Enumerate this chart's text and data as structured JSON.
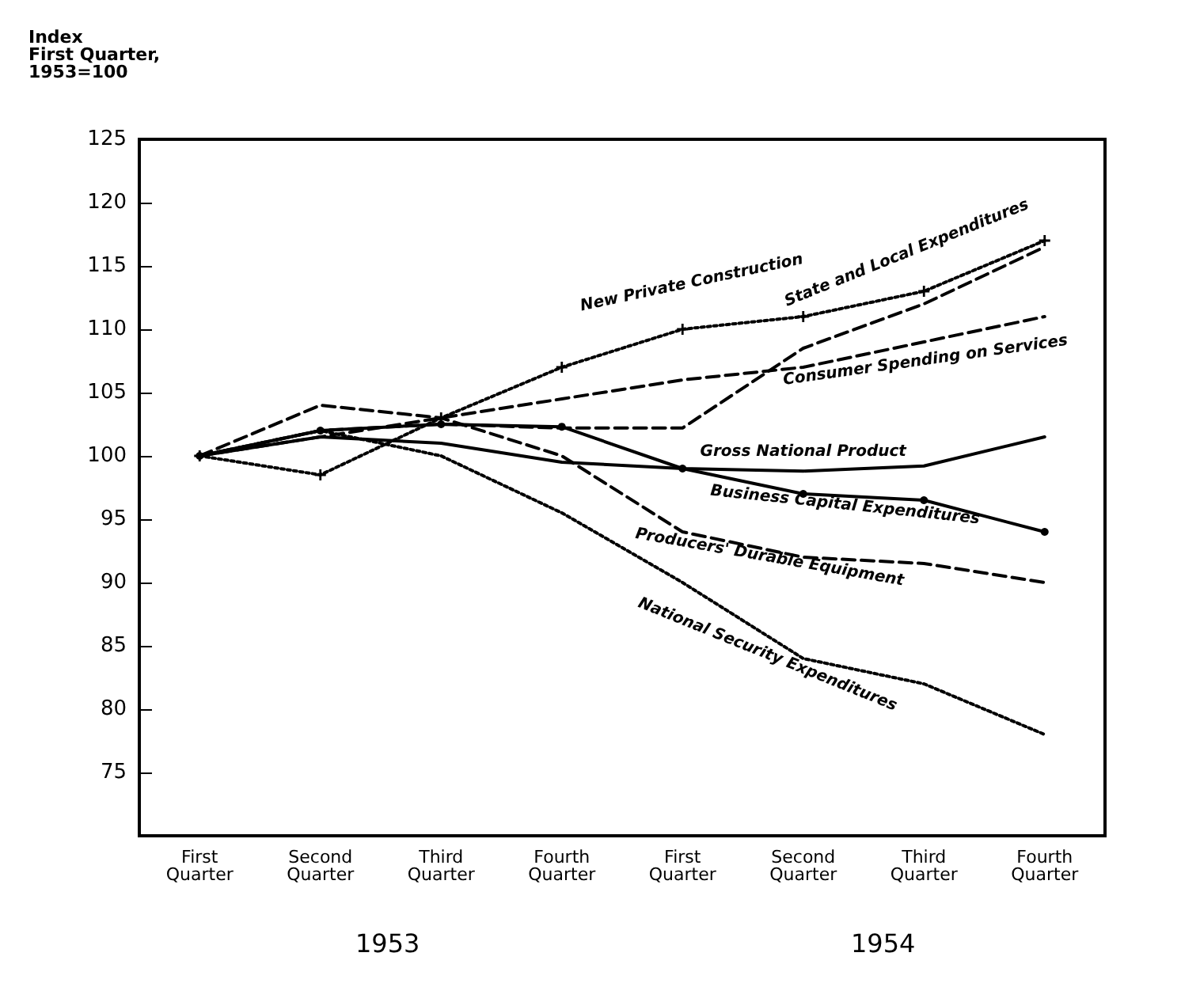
{
  "chart_data": {
    "type": "line",
    "ylabel": "Index\nFirst Quarter,\n1953=100",
    "categories": [
      "First\nQuarter",
      "Second\nQuarter",
      "Third\nQuarter",
      "Fourth\nQuarter",
      "First\nQuarter",
      "Second\nQuarter",
      "Third\nQuarter",
      "Fourth\nQuarter"
    ],
    "annotations": [
      "1953",
      "1954"
    ],
    "ylim": [
      70,
      125
    ],
    "yticks": [
      75,
      80,
      85,
      90,
      95,
      100,
      105,
      110,
      115,
      120,
      125
    ],
    "grid": false,
    "legend": false,
    "series": [
      {
        "name": "New Private Construction",
        "color": "#000000",
        "line_style": "dotted",
        "marker": "cross",
        "values": [
          100,
          98.5,
          103,
          107,
          110,
          111,
          113,
          117
        ]
      },
      {
        "name": "State and Local Expenditures",
        "color": "#000000",
        "line_style": "dashed",
        "marker": "none",
        "values": [
          100,
          102,
          102.5,
          102.2,
          102.2,
          108.5,
          112,
          116.5
        ]
      },
      {
        "name": "Consumer Spending on Services",
        "color": "#000000",
        "line_style": "dashed",
        "marker": "none",
        "values": [
          100,
          101.5,
          103,
          104.5,
          106,
          107,
          109,
          111
        ]
      },
      {
        "name": "Gross National Product",
        "color": "#000000",
        "line_style": "solid",
        "marker": "none",
        "values": [
          100,
          101.5,
          101,
          99.5,
          99,
          98.8,
          99.2,
          101.5
        ]
      },
      {
        "name": "Business Capital Expenditures",
        "color": "#000000",
        "line_style": "solid",
        "marker": "circle",
        "values": [
          100,
          102,
          102.5,
          102.3,
          99,
          97,
          96.5,
          94
        ]
      },
      {
        "name": "Producers' Durable Equipment",
        "color": "#000000",
        "line_style": "dashed",
        "marker": "none",
        "values": [
          100,
          104,
          103,
          100,
          94,
          92,
          91.5,
          90
        ]
      },
      {
        "name": "National Security Expenditures",
        "color": "#000000",
        "line_style": "dotted",
        "marker": "none",
        "values": [
          100,
          102,
          100,
          95.5,
          90,
          84,
          82,
          78
        ]
      }
    ]
  }
}
